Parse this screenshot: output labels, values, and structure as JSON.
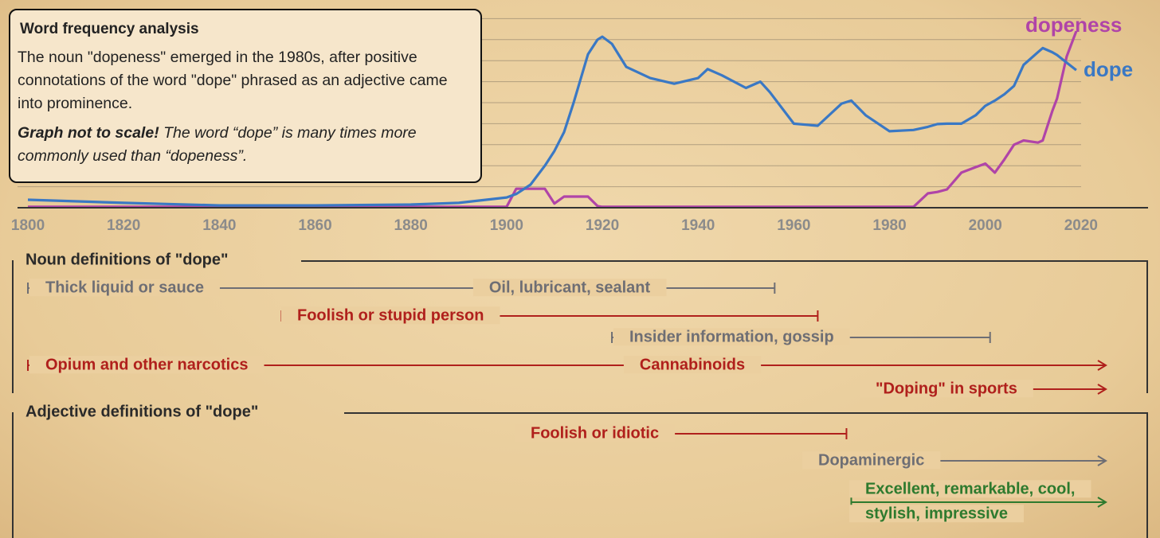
{
  "chart_data": {
    "type": "line",
    "x": [
      1800,
      1820,
      1840,
      1860,
      1880,
      1890,
      1900,
      1902,
      1905,
      1908,
      1910,
      1912,
      1914,
      1917,
      1919,
      1920,
      1922,
      1925,
      1930,
      1935,
      1940,
      1942,
      1945,
      1950,
      1953,
      1955,
      1960,
      1965,
      1970,
      1972,
      1975,
      1980,
      1985,
      1988,
      1990,
      1992,
      1995,
      1998,
      2000,
      2002,
      2004,
      2006,
      2008,
      2011,
      2012,
      2014,
      2015,
      2017,
      2019
    ],
    "series": [
      {
        "name": "dope",
        "color": "#3a78c4",
        "values": [
          3.8,
          2.3,
          1.1,
          1.1,
          1.5,
          2.3,
          4.9,
          6.5,
          11,
          20,
          27,
          36,
          50,
          73,
          80,
          81.4,
          78,
          67,
          61.7,
          59,
          61.7,
          66,
          63,
          57,
          60,
          55,
          40,
          39,
          49.6,
          51,
          44,
          36.4,
          37,
          38.5,
          39.8,
          40,
          40,
          44,
          48.5,
          51,
          54,
          58,
          68,
          74,
          76,
          74,
          72.7,
          69,
          65.5
        ]
      },
      {
        "name": "dopeness",
        "color": "#b044a8",
        "values": [
          0.4,
          0.4,
          0.4,
          0.4,
          0.4,
          0.4,
          0.4,
          9,
          9,
          9,
          2,
          5.3,
          5.3,
          5.3,
          0.8,
          0.4,
          0.4,
          0.4,
          0.4,
          0.4,
          0.4,
          0.4,
          0.4,
          0.4,
          0.4,
          0.4,
          0.4,
          0.4,
          0.4,
          0.4,
          0.4,
          0.4,
          0.4,
          6.8,
          7.5,
          8.7,
          16.7,
          19.3,
          21,
          16.7,
          23,
          30,
          32,
          31,
          32,
          46,
          52,
          72,
          84
        ]
      }
    ],
    "xlim": [
      1798,
      2034
    ],
    "xticks": [
      1800,
      1820,
      1840,
      1860,
      1880,
      1900,
      1920,
      1940,
      1960,
      1980,
      2000,
      2020
    ],
    "ylim": [
      0,
      100
    ],
    "yticks": [
      10,
      20,
      30,
      40,
      50,
      60,
      70,
      80,
      90
    ],
    "grid": true
  },
  "info_box": {
    "title": "Word frequency analysis",
    "text": "The noun \"dopeness\" emerged in the 1980s, after positive connotations of the word \"dope\" phrased as an adjective came into prominence.",
    "note_bold": "Graph not to scale!",
    "note": "The word “dope” is many times more commonly used than “dopeness”."
  },
  "timeline": {
    "sections": [
      {
        "heading": "Noun definitions of \"dope\"",
        "items": [
          {
            "labels": [
              "Thick liquid or sauce",
              "Oil, lubricant, sealant"
            ],
            "start": 1800,
            "end": 1956,
            "color": "#6e6e74"
          },
          {
            "labels": [
              "Foolish or stupid person"
            ],
            "start": 1853,
            "end": 1965,
            "color": "#b0201c"
          },
          {
            "labels": [
              "Insider information, gossip"
            ],
            "start": 1922,
            "end": 2001,
            "color": "#6e6e74"
          },
          {
            "labels": [
              "Opium and other narcotics",
              "Cannabinoids"
            ],
            "start": 1800,
            "ongoing": true,
            "color": "#b0201c"
          },
          {
            "labels": [
              "\"Doping\" in sports"
            ],
            "start": 1974,
            "ongoing": true,
            "color": "#b0201c"
          }
        ]
      },
      {
        "heading": "Adjective definitions of \"dope\"",
        "items": [
          {
            "labels": [
              "Foolish or idiotic"
            ],
            "start": 1902,
            "end": 1971,
            "color": "#b0201c"
          },
          {
            "labels": [
              "Dopaminergic"
            ],
            "start": 1962,
            "ongoing": true,
            "color": "#6e6e74"
          },
          {
            "labels": [
              "Excellent, remarkable, cool,",
              "stylish, impressive"
            ],
            "start": 1972,
            "ongoing": true,
            "color": "#2e7a2e"
          }
        ]
      }
    ]
  }
}
